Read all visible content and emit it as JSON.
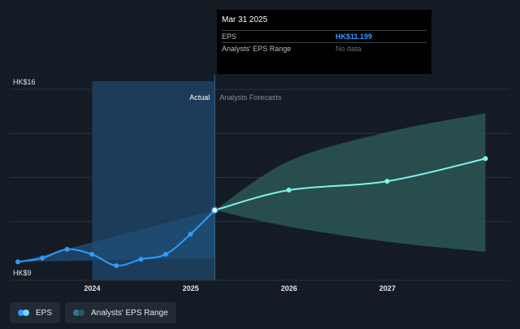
{
  "tooltip": {
    "date": "Mar 31 2025",
    "eps_label": "EPS",
    "eps_value": "HK$11.199",
    "range_label": "Analysts' EPS Range",
    "range_value": "No data"
  },
  "legend": {
    "items": [
      {
        "label": "EPS",
        "colors": [
          "#2f9bff",
          "#6fd8ff"
        ]
      },
      {
        "label": "Analysts' EPS Range",
        "colors": [
          "#2e7a8a",
          "#1f5c66"
        ]
      }
    ]
  },
  "colors": {
    "actual_line": "#2f9bff",
    "forecast_line": "#7ff3ec",
    "forecast_band": "#2d5a57",
    "past_band": "#1f4f78",
    "highlight": "#1d4264",
    "background": "#151b24"
  },
  "chart_data": {
    "type": "line",
    "section_labels": {
      "actual": "Actual",
      "forecast": "Analysts Forecasts"
    },
    "y_ticks": [
      {
        "value": 16,
        "label": "HK$16"
      },
      {
        "value": 9,
        "label": "HK$9"
      }
    ],
    "ylim": [
      9,
      16
    ],
    "xlim": [
      "2023-03-01",
      "2028-04-01"
    ],
    "x_ticks": [
      {
        "date": "2024-01-01",
        "label": "2024"
      },
      {
        "date": "2025-01-01",
        "label": "2025"
      },
      {
        "date": "2026-01-01",
        "label": "2026"
      },
      {
        "date": "2027-01-01",
        "label": "2027"
      }
    ],
    "actual_end": "2025-03-31",
    "highlight_start": "2024-01-01",
    "series": [
      {
        "name": "EPS",
        "points": [
          {
            "date": "2023-03-31",
            "value": 9.15
          },
          {
            "date": "2023-06-30",
            "value": 9.3
          },
          {
            "date": "2023-09-30",
            "value": 9.65
          },
          {
            "date": "2023-12-31",
            "value": 9.45
          },
          {
            "date": "2024-03-31",
            "value": 9.0
          },
          {
            "date": "2024-06-30",
            "value": 9.25
          },
          {
            "date": "2024-09-30",
            "value": 9.45
          },
          {
            "date": "2024-12-31",
            "value": 10.25
          },
          {
            "date": "2025-03-31",
            "value": 11.2
          }
        ]
      },
      {
        "name": "EPS Forecast",
        "points": [
          {
            "date": "2025-03-31",
            "value": 11.2
          },
          {
            "date": "2025-12-31",
            "value": 12.0
          },
          {
            "date": "2026-12-31",
            "value": 12.35
          },
          {
            "date": "2027-12-31",
            "value": 13.25
          }
        ]
      }
    ],
    "forecast_range": [
      {
        "date": "2025-03-31",
        "low": 11.2,
        "high": 11.2
      },
      {
        "date": "2025-12-31",
        "low": 10.55,
        "high": 13.15
      },
      {
        "date": "2026-12-31",
        "low": 9.95,
        "high": 14.3
      },
      {
        "date": "2027-12-31",
        "low": 9.55,
        "high": 15.05
      }
    ],
    "past_range": [
      {
        "date": "2023-03-31",
        "low": 9.15,
        "high": 9.15
      },
      {
        "date": "2025-03-31",
        "low": 9.3,
        "high": 11.2
      }
    ]
  }
}
